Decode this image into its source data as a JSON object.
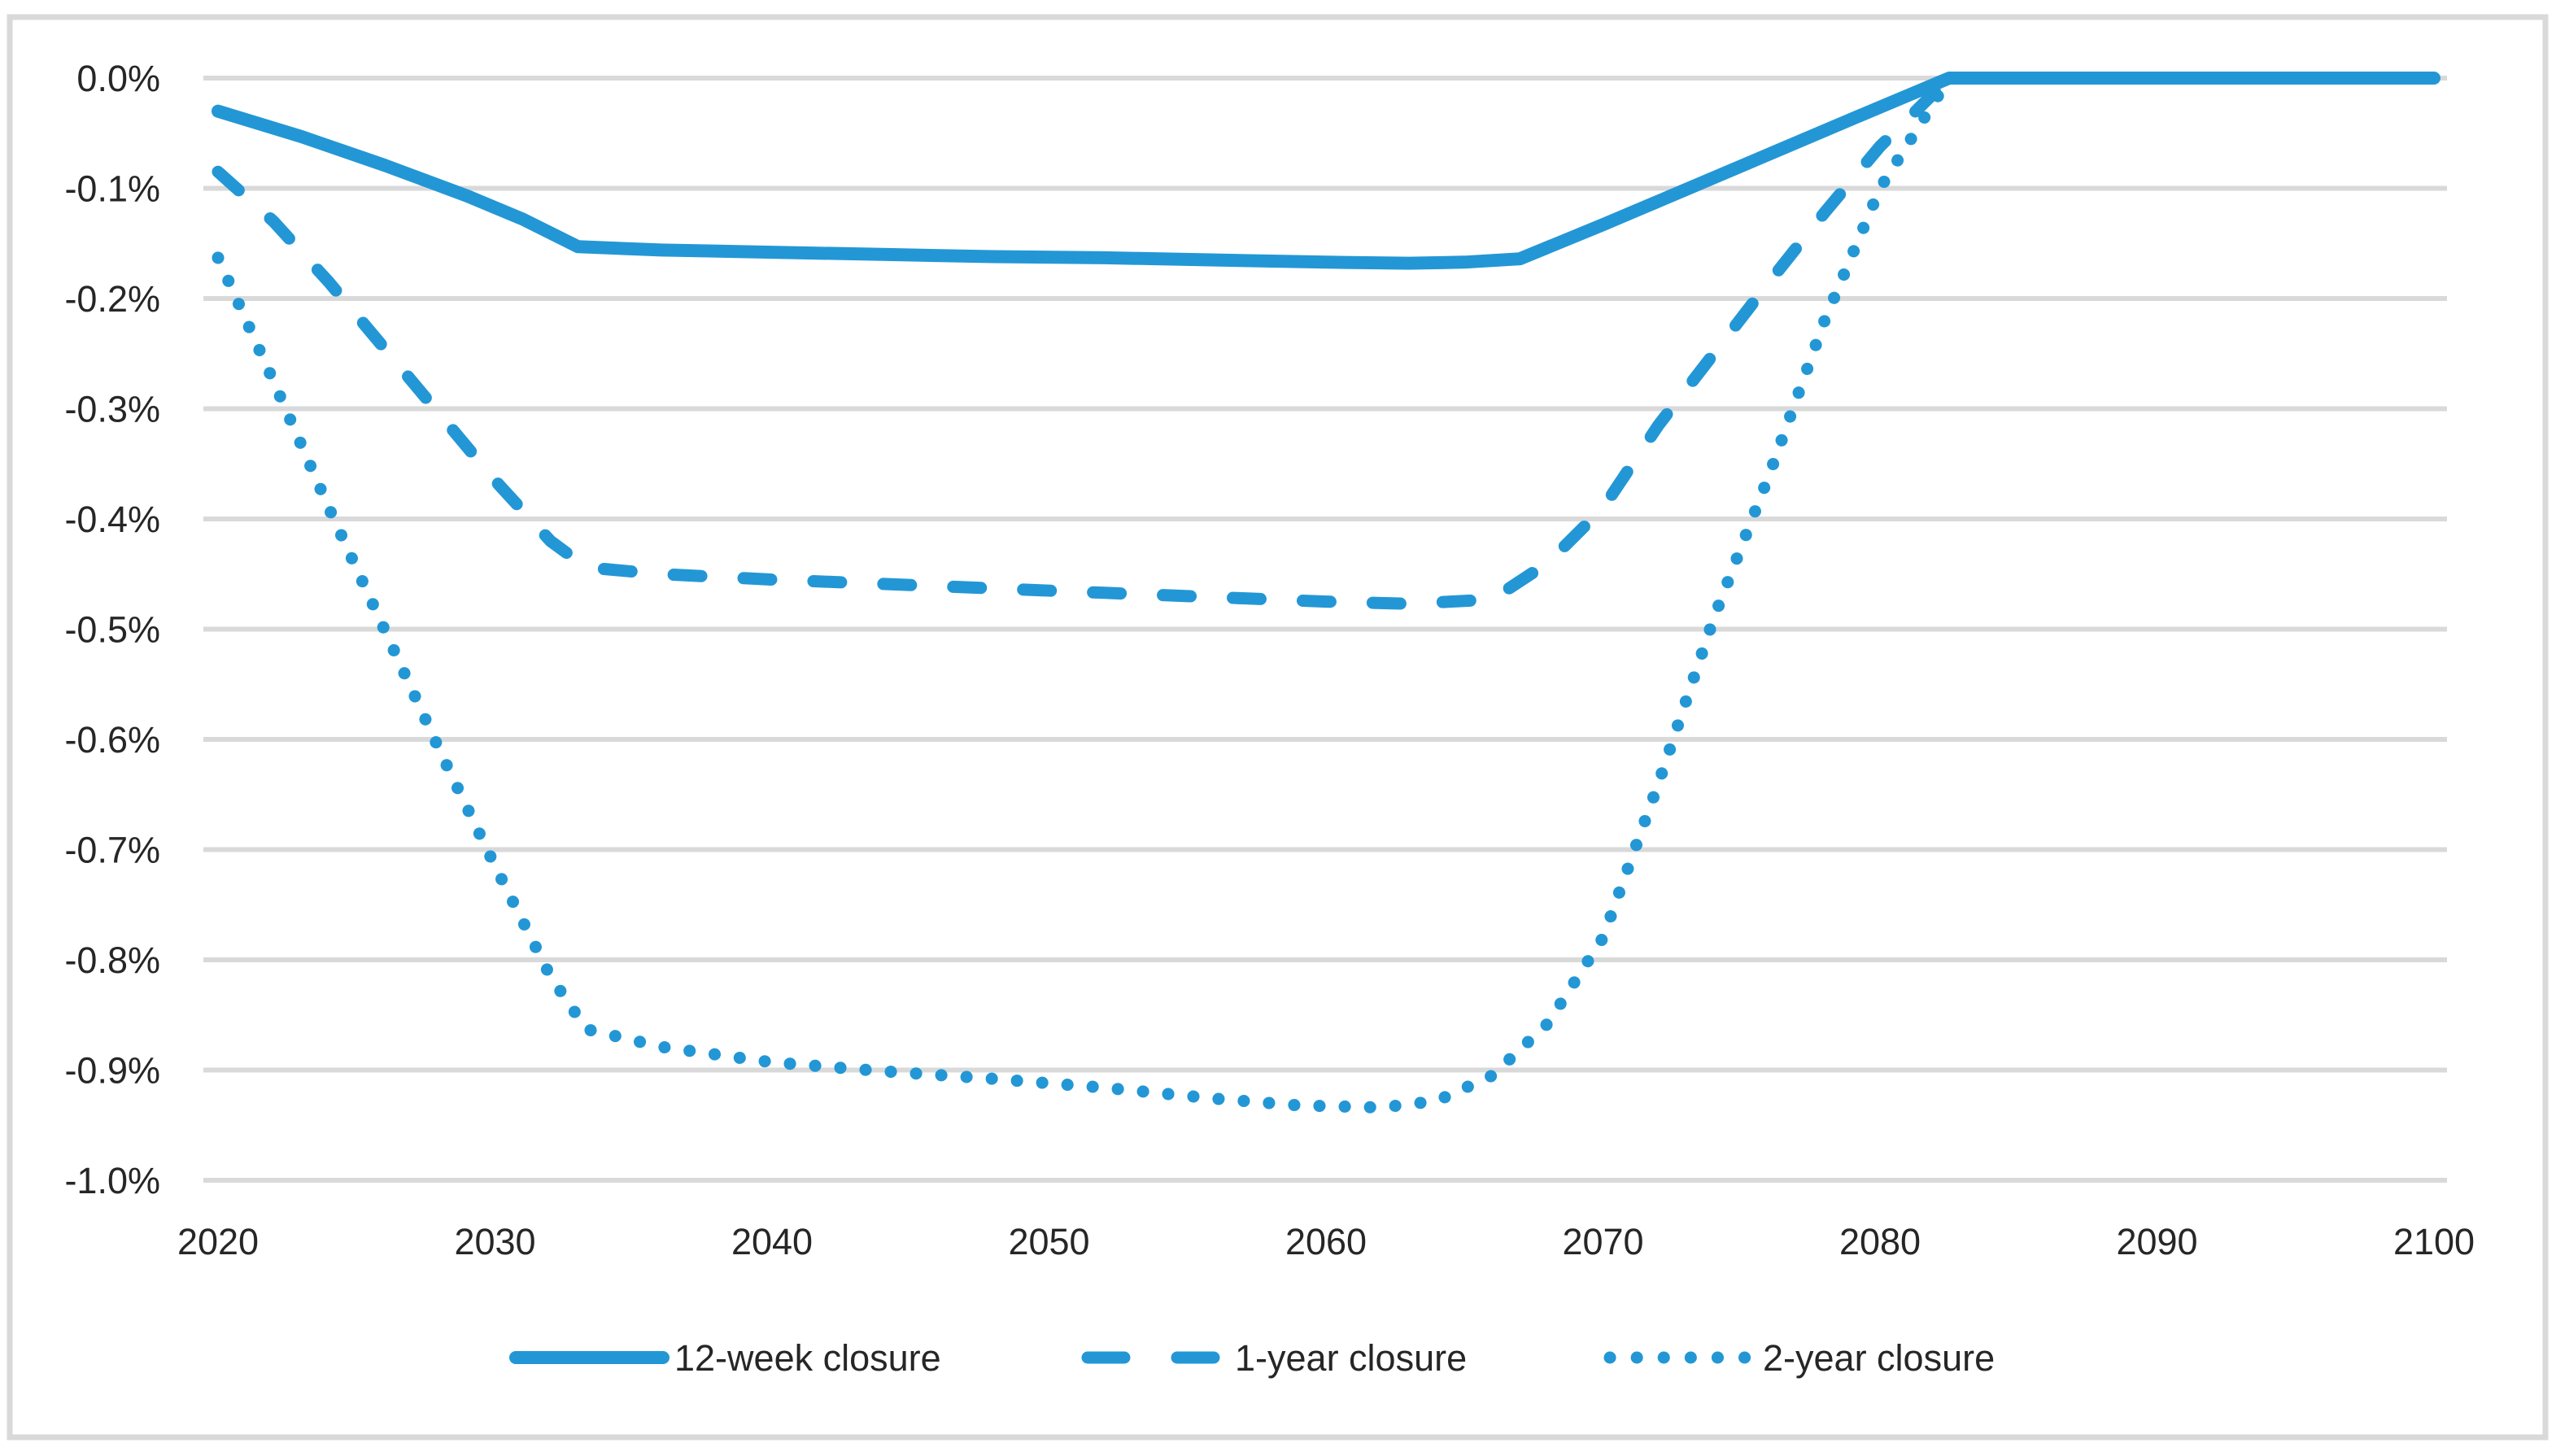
{
  "colors": {
    "series_blue": "#2397D5",
    "gridline": "#D9D9D9",
    "border": "#D9D9D9",
    "text": "#262626",
    "background": "#FFFFFF"
  },
  "chart_data": {
    "type": "line",
    "title": "",
    "xlabel": "",
    "ylabel": "",
    "grid": "horizontal",
    "legend_position": "bottom",
    "x_axis": {
      "range": [
        2020,
        2100
      ],
      "tick_labels": [
        "2020",
        "2030",
        "2040",
        "2050",
        "2060",
        "2070",
        "2080",
        "2090",
        "2100"
      ]
    },
    "y_axis": {
      "range": [
        -1.0,
        0.0
      ],
      "unit": "%",
      "tick_labels": [
        "0.0%",
        "-0.1%",
        "-0.2%",
        "-0.3%",
        "-0.4%",
        "-0.5%",
        "-0.6%",
        "-0.7%",
        "-0.8%",
        "-0.9%",
        "-1.0%"
      ]
    },
    "series": [
      {
        "name": "12-week closure",
        "style": "solid",
        "points": [
          [
            2020,
            -0.03
          ],
          [
            2023,
            -0.053
          ],
          [
            2026,
            -0.079
          ],
          [
            2029,
            -0.107
          ],
          [
            2031,
            -0.128
          ],
          [
            2033,
            -0.153
          ],
          [
            2036,
            -0.156
          ],
          [
            2040,
            -0.158
          ],
          [
            2044,
            -0.16
          ],
          [
            2048,
            -0.162
          ],
          [
            2052,
            -0.163
          ],
          [
            2056,
            -0.165
          ],
          [
            2060,
            -0.167
          ],
          [
            2063,
            -0.168
          ],
          [
            2065,
            -0.167
          ],
          [
            2067,
            -0.164
          ],
          [
            2070,
            -0.133
          ],
          [
            2073,
            -0.101
          ],
          [
            2076,
            -0.069
          ],
          [
            2079,
            -0.037
          ],
          [
            2082.5,
            0
          ],
          [
            2090,
            0
          ],
          [
            2100,
            0
          ]
        ]
      },
      {
        "name": "1-year closure",
        "style": "dashed",
        "points": [
          [
            2020,
            -0.085
          ],
          [
            2022,
            -0.13
          ],
          [
            2024,
            -0.185
          ],
          [
            2026,
            -0.245
          ],
          [
            2028,
            -0.305
          ],
          [
            2030,
            -0.365
          ],
          [
            2032,
            -0.42
          ],
          [
            2033.3,
            -0.444
          ],
          [
            2036,
            -0.45
          ],
          [
            2040,
            -0.455
          ],
          [
            2044,
            -0.459
          ],
          [
            2048,
            -0.463
          ],
          [
            2052,
            -0.467
          ],
          [
            2056,
            -0.471
          ],
          [
            2060,
            -0.475
          ],
          [
            2063,
            -0.477
          ],
          [
            2066,
            -0.473
          ],
          [
            2068,
            -0.44
          ],
          [
            2070,
            -0.39
          ],
          [
            2072,
            -0.315
          ],
          [
            2074,
            -0.25
          ],
          [
            2076,
            -0.185
          ],
          [
            2078,
            -0.122
          ],
          [
            2080,
            -0.062
          ],
          [
            2082.5,
            0
          ],
          [
            2090,
            0
          ],
          [
            2100,
            0
          ]
        ]
      },
      {
        "name": "2-year closure",
        "style": "dotted",
        "points": [
          [
            2020,
            -0.163
          ],
          [
            2022,
            -0.275
          ],
          [
            2024,
            -0.39
          ],
          [
            2026,
            -0.5
          ],
          [
            2028,
            -0.61
          ],
          [
            2030,
            -0.715
          ],
          [
            2032,
            -0.815
          ],
          [
            2033.3,
            -0.863
          ],
          [
            2036,
            -0.879
          ],
          [
            2040,
            -0.893
          ],
          [
            2044,
            -0.901
          ],
          [
            2048,
            -0.908
          ],
          [
            2052,
            -0.916
          ],
          [
            2056,
            -0.926
          ],
          [
            2059,
            -0.932
          ],
          [
            2062,
            -0.934
          ],
          [
            2064,
            -0.928
          ],
          [
            2066,
            -0.905
          ],
          [
            2068,
            -0.858
          ],
          [
            2070,
            -0.78
          ],
          [
            2072,
            -0.64
          ],
          [
            2074,
            -0.49
          ],
          [
            2076,
            -0.36
          ],
          [
            2078,
            -0.22
          ],
          [
            2080,
            -0.1
          ],
          [
            2082.5,
            0
          ],
          [
            2090,
            0
          ],
          [
            2100,
            0
          ]
        ]
      }
    ]
  }
}
